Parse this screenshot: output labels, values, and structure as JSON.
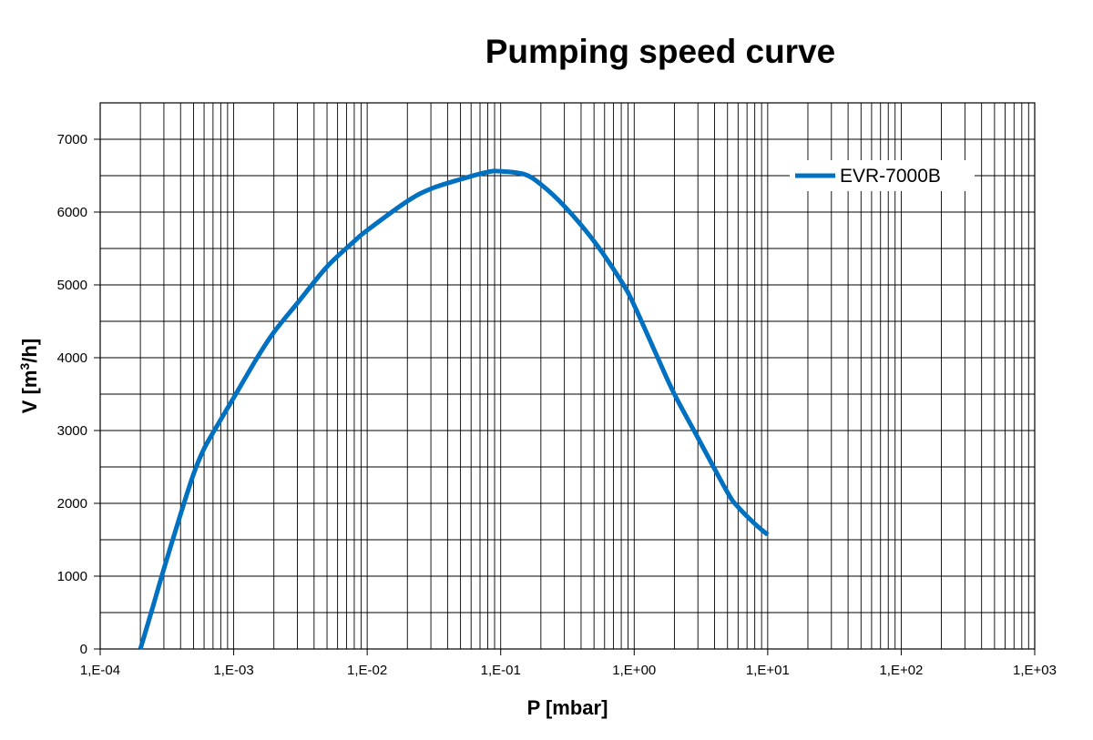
{
  "chart_data": {
    "type": "line",
    "title": "Pumping speed curve",
    "xlabel": "P [mbar]",
    "ylabel_main": "V [m",
    "ylabel_sup": "3",
    "ylabel_tail": "/h]",
    "x_scale": "log",
    "xlim": [
      0.0001,
      1000
    ],
    "ylim": [
      0,
      7500
    ],
    "x_ticks": [
      {
        "value": 0.0001,
        "label": "1,E-04"
      },
      {
        "value": 0.001,
        "label": "1,E-03"
      },
      {
        "value": 0.01,
        "label": "1,E-02"
      },
      {
        "value": 0.1,
        "label": "1,E-01"
      },
      {
        "value": 1,
        "label": "1,E+00"
      },
      {
        "value": 10,
        "label": "1,E+01"
      },
      {
        "value": 100,
        "label": "1,E+02"
      },
      {
        "value": 1000,
        "label": "1,E+03"
      }
    ],
    "y_ticks": [
      {
        "value": 0,
        "label": "0"
      },
      {
        "value": 1000,
        "label": "1000"
      },
      {
        "value": 2000,
        "label": "2000"
      },
      {
        "value": 3000,
        "label": "3000"
      },
      {
        "value": 4000,
        "label": "4000"
      },
      {
        "value": 5000,
        "label": "5000"
      },
      {
        "value": 6000,
        "label": "6000"
      },
      {
        "value": 7000,
        "label": "7000"
      }
    ],
    "grid": true,
    "legend_position": "top-right",
    "series": [
      {
        "name": "EVR-7000B",
        "color": "#0070C0",
        "points": [
          {
            "x": 0.0002,
            "y": 0
          },
          {
            "x": 0.00025,
            "y": 600
          },
          {
            "x": 0.0003,
            "y": 1100
          },
          {
            "x": 0.0004,
            "y": 1850
          },
          {
            "x": 0.0005,
            "y": 2400
          },
          {
            "x": 0.0006,
            "y": 2750
          },
          {
            "x": 0.0008,
            "y": 3150
          },
          {
            "x": 0.001,
            "y": 3450
          },
          {
            "x": 0.0015,
            "y": 4000
          },
          {
            "x": 0.002,
            "y": 4350
          },
          {
            "x": 0.003,
            "y": 4750
          },
          {
            "x": 0.005,
            "y": 5250
          },
          {
            "x": 0.008,
            "y": 5600
          },
          {
            "x": 0.01,
            "y": 5750
          },
          {
            "x": 0.02,
            "y": 6150
          },
          {
            "x": 0.03,
            "y": 6320
          },
          {
            "x": 0.05,
            "y": 6450
          },
          {
            "x": 0.08,
            "y": 6550
          },
          {
            "x": 0.1,
            "y": 6560
          },
          {
            "x": 0.15,
            "y": 6520
          },
          {
            "x": 0.2,
            "y": 6380
          },
          {
            "x": 0.3,
            "y": 6080
          },
          {
            "x": 0.5,
            "y": 5600
          },
          {
            "x": 0.8,
            "y": 5050
          },
          {
            "x": 1,
            "y": 4720
          },
          {
            "x": 1.5,
            "y": 4000
          },
          {
            "x": 2,
            "y": 3500
          },
          {
            "x": 3,
            "y": 2900
          },
          {
            "x": 5,
            "y": 2150
          },
          {
            "x": 6,
            "y": 1950
          },
          {
            "x": 8,
            "y": 1720
          },
          {
            "x": 10,
            "y": 1570
          }
        ]
      }
    ]
  }
}
